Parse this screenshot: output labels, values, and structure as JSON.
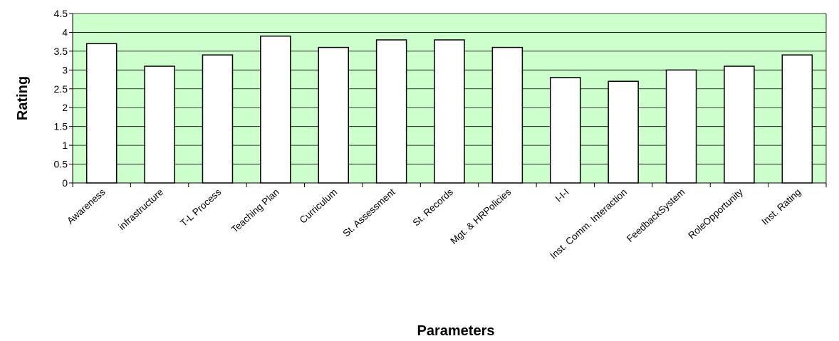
{
  "chart_data": {
    "type": "bar",
    "categories": [
      "Awareness",
      "infrastructure",
      "T-L Process",
      "Teaching Plan",
      "Curriculum",
      "St. Assessment",
      "St. Records",
      "Mgt. & HRPolicies",
      "I-I-I",
      "Inst. Comm. Interaction",
      "FeedbackSystem",
      "RoleOpportunity",
      "Inst. Rating"
    ],
    "values": [
      3.7,
      3.1,
      3.4,
      3.9,
      3.6,
      3.8,
      3.8,
      3.6,
      2.8,
      2.7,
      3.0,
      3.1,
      3.4
    ],
    "color": "#ffffff",
    "background": "#ccffcc",
    "ylim": [
      0,
      4.5
    ],
    "yticks": [
      0,
      0.5,
      1,
      1.5,
      2,
      2.5,
      3,
      3.5,
      4,
      4.5
    ],
    "grid": true,
    "x_label": "Parameters",
    "y_label": "Rating"
  }
}
